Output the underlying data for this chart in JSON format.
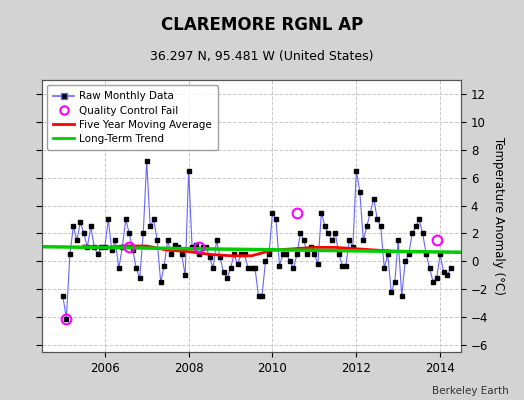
{
  "title": "CLAREMORE RGNL AP",
  "subtitle": "36.297 N, 95.481 W (United States)",
  "credit": "Berkeley Earth",
  "ylabel_right": "Temperature Anomaly (°C)",
  "ylim": [
    -6.5,
    13
  ],
  "yticks": [
    -6,
    -4,
    -2,
    0,
    2,
    4,
    6,
    8,
    10,
    12
  ],
  "xlim": [
    2004.5,
    2014.5
  ],
  "xticks": [
    2006,
    2008,
    2010,
    2012,
    2014
  ],
  "bg_color": "#d3d3d3",
  "plot_bg_color": "#ffffff",
  "grid_color": "#c8c8c8",
  "raw_color": "#6666ff",
  "raw_marker_color": "#000000",
  "ma_color": "#ff0000",
  "trend_color": "#00cc00",
  "qc_color": "#ff00ff",
  "raw_data_x": [
    2005.0,
    2005.083,
    2005.167,
    2005.25,
    2005.333,
    2005.417,
    2005.5,
    2005.583,
    2005.667,
    2005.75,
    2005.833,
    2005.917,
    2006.0,
    2006.083,
    2006.167,
    2006.25,
    2006.333,
    2006.417,
    2006.5,
    2006.583,
    2006.667,
    2006.75,
    2006.833,
    2006.917,
    2007.0,
    2007.083,
    2007.167,
    2007.25,
    2007.333,
    2007.417,
    2007.5,
    2007.583,
    2007.667,
    2007.75,
    2007.833,
    2007.917,
    2008.0,
    2008.083,
    2008.167,
    2008.25,
    2008.333,
    2008.417,
    2008.5,
    2008.583,
    2008.667,
    2008.75,
    2008.833,
    2008.917,
    2009.0,
    2009.083,
    2009.167,
    2009.25,
    2009.333,
    2009.417,
    2009.5,
    2009.583,
    2009.667,
    2009.75,
    2009.833,
    2009.917,
    2010.0,
    2010.083,
    2010.167,
    2010.25,
    2010.333,
    2010.417,
    2010.5,
    2010.583,
    2010.667,
    2010.75,
    2010.833,
    2010.917,
    2011.0,
    2011.083,
    2011.167,
    2011.25,
    2011.333,
    2011.417,
    2011.5,
    2011.583,
    2011.667,
    2011.75,
    2011.833,
    2011.917,
    2012.0,
    2012.083,
    2012.167,
    2012.25,
    2012.333,
    2012.417,
    2012.5,
    2012.583,
    2012.667,
    2012.75,
    2012.833,
    2012.917,
    2013.0,
    2013.083,
    2013.167,
    2013.25,
    2013.333,
    2013.417,
    2013.5,
    2013.583,
    2013.667,
    2013.75,
    2013.833,
    2013.917,
    2014.0,
    2014.083,
    2014.167,
    2014.25
  ],
  "raw_data_y": [
    -2.5,
    -4.1,
    0.5,
    2.5,
    1.5,
    2.8,
    2.0,
    1.0,
    2.5,
    1.0,
    0.5,
    1.0,
    1.0,
    3.0,
    0.8,
    1.5,
    -0.5,
    1.0,
    3.0,
    2.0,
    0.8,
    -0.5,
    -1.2,
    2.0,
    7.2,
    2.5,
    3.0,
    1.5,
    -1.5,
    -0.3,
    1.5,
    0.5,
    1.2,
    1.0,
    0.5,
    -1.0,
    6.5,
    1.0,
    1.2,
    0.5,
    1.0,
    1.0,
    0.3,
    -0.5,
    1.5,
    0.3,
    -0.8,
    -1.2,
    -0.5,
    0.5,
    -0.2,
    0.5,
    0.5,
    -0.5,
    -0.5,
    -0.5,
    -2.5,
    -2.5,
    0.0,
    0.5,
    3.5,
    3.0,
    -0.3,
    0.5,
    0.5,
    0.0,
    -0.5,
    0.5,
    2.0,
    1.5,
    0.5,
    1.0,
    0.5,
    -0.2,
    3.5,
    2.5,
    2.0,
    1.5,
    2.0,
    0.5,
    -0.3,
    -0.3,
    1.5,
    1.0,
    6.5,
    5.0,
    1.5,
    2.5,
    3.5,
    4.5,
    3.0,
    2.5,
    -0.5,
    0.5,
    -2.2,
    -1.5,
    1.5,
    -2.5,
    0.0,
    0.5,
    2.0,
    2.5,
    3.0,
    2.0,
    0.5,
    -0.5,
    -1.5,
    -1.2,
    0.5,
    -0.8,
    -1.0,
    -0.5
  ],
  "ma_data_x": [
    2005.5,
    2006.0,
    2006.5,
    2007.0,
    2007.5,
    2008.0,
    2008.5,
    2009.0,
    2009.5,
    2010.0,
    2010.5,
    2011.0,
    2011.5,
    2012.0,
    2012.5,
    2013.0
  ],
  "ma_data_y": [
    1.1,
    1.0,
    1.1,
    1.1,
    0.8,
    0.7,
    0.5,
    0.4,
    0.4,
    0.8,
    0.9,
    1.0,
    1.0,
    0.9,
    0.8,
    0.7
  ],
  "trend_x": [
    2004.5,
    2014.5
  ],
  "trend_y": [
    1.05,
    0.65
  ],
  "qc_fail_x": [
    2005.083,
    2006.583,
    2008.25,
    2010.583,
    2013.917
  ],
  "qc_fail_y": [
    -4.1,
    1.0,
    1.0,
    3.5,
    1.5
  ]
}
